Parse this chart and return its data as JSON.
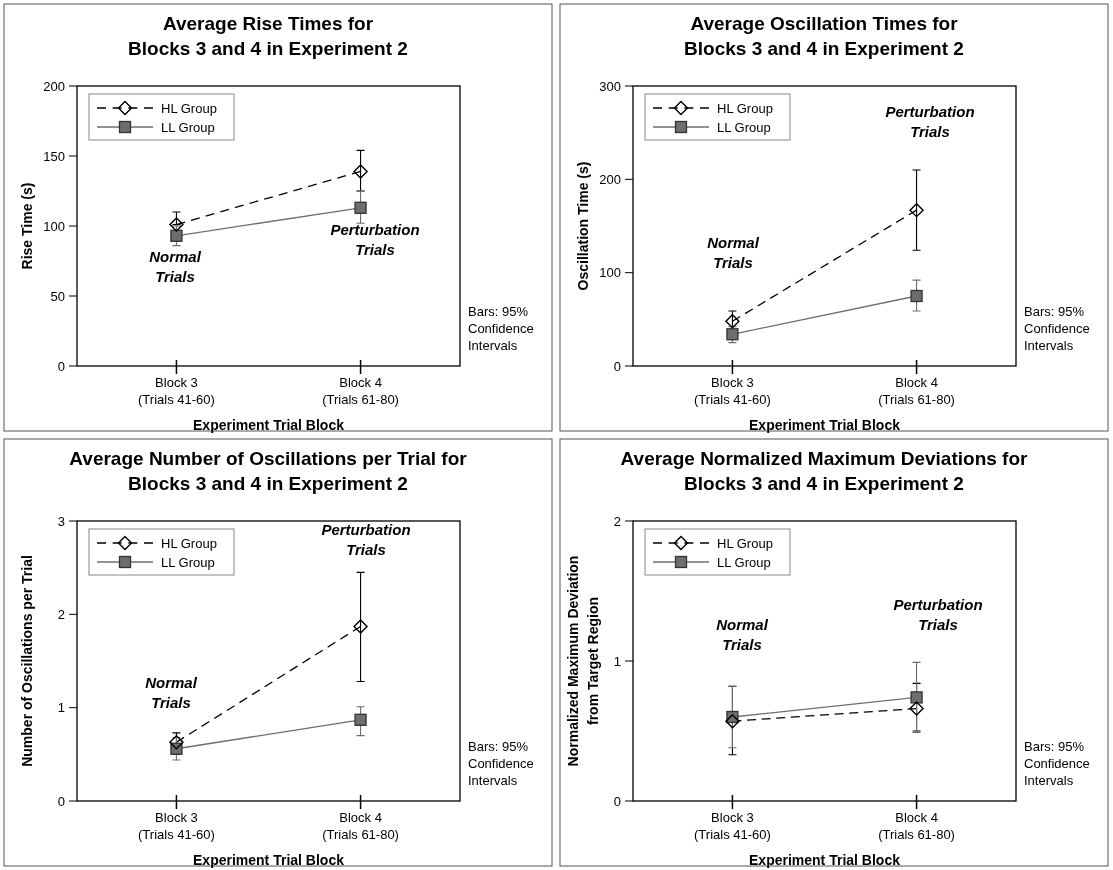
{
  "chart_data": [
    {
      "type": "line",
      "title": "Average Rise Times for\nBlocks 3 and 4 in Experiment 2",
      "xlabel": "Experiment Trial Block",
      "ylabel": "Rise Time (s)",
      "categories": [
        "Block 3\n(Trials 41-60)",
        "Block 4\n(Trials 61-80)"
      ],
      "ylim": [
        0,
        200
      ],
      "yticks": [
        0,
        50,
        100,
        150,
        200
      ],
      "grid": false,
      "legend": "top left",
      "series": [
        {
          "name": "HL Group",
          "color": "#000000",
          "marker": "diamond",
          "line_style": "dashed",
          "values": [
            101,
            139
          ],
          "errors": [
            [
              101,
              110
            ],
            [
              125,
              154
            ]
          ]
        },
        {
          "name": "LL Group",
          "color": "#6e6e6e",
          "marker": "square",
          "line_style": "solid",
          "values": [
            93,
            113
          ],
          "errors": [
            [
              86,
              100
            ],
            [
              102,
              125
            ]
          ]
        }
      ],
      "annotations": [
        "Normal\nTrials",
        "Perturbation\nTrials",
        "Bars: 95%\nConfidence\nIntervals"
      ]
    },
    {
      "type": "line",
      "title": "Average Oscillation Times for\nBlocks 3 and 4 in Experiment 2",
      "xlabel": "Experiment Trial Block",
      "ylabel": "Oscillation Time (s)",
      "categories": [
        "Block 3\n(Trials 41-60)",
        "Block 4\n(Trials 61-80)"
      ],
      "ylim": [
        0,
        300
      ],
      "yticks": [
        0,
        100,
        200,
        300
      ],
      "grid": false,
      "legend": "top left",
      "series": [
        {
          "name": "HL Group",
          "color": "#000000",
          "marker": "diamond",
          "line_style": "dashed",
          "values": [
            48,
            167
          ],
          "errors": [
            [
              37,
              59
            ],
            [
              124,
              210
            ]
          ]
        },
        {
          "name": "LL Group",
          "color": "#6e6e6e",
          "marker": "square",
          "line_style": "solid",
          "values": [
            34,
            75
          ],
          "errors": [
            [
              25,
              42
            ],
            [
              59,
              92
            ]
          ]
        }
      ],
      "annotations": [
        "Normal\nTrials",
        "Perturbation\nTrials",
        "Bars: 95%\nConfidence\nIntervals"
      ]
    },
    {
      "type": "line",
      "title": "Average Number of Oscillations per Trial for\nBlocks 3 and 4 in Experiment 2",
      "xlabel": "Experiment Trial Block",
      "ylabel": "Number of Oscillations per Trial",
      "categories": [
        "Block 3\n(Trials 41-60)",
        "Block 4\n(Trials 61-80)"
      ],
      "ylim": [
        0,
        3
      ],
      "yticks": [
        0,
        1,
        2,
        3
      ],
      "grid": false,
      "legend": "top left",
      "series": [
        {
          "name": "HL Group",
          "color": "#000000",
          "marker": "diamond",
          "line_style": "dashed",
          "values": [
            0.63,
            1.87
          ],
          "errors": [
            [
              0.5,
              0.73
            ],
            [
              1.28,
              2.45
            ]
          ]
        },
        {
          "name": "LL Group",
          "color": "#6e6e6e",
          "marker": "square",
          "line_style": "solid",
          "values": [
            0.56,
            0.87
          ],
          "errors": [
            [
              0.44,
              0.68
            ],
            [
              0.7,
              1.01
            ]
          ]
        }
      ],
      "annotations": [
        "Normal\nTrials",
        "Perturbation\nTrials",
        "Bars: 95%\nConfidence\nIntervals"
      ]
    },
    {
      "type": "line",
      "title": "Average Normalized Maximum Deviations for\nBlocks 3 and 4 in Experiment 2",
      "xlabel": "Experiment Trial Block",
      "ylabel": "Normalized Maximum Deviation\nfrom Target Region",
      "categories": [
        "Block 3\n(Trials 41-60)",
        "Block 4\n(Trials 61-80)"
      ],
      "ylim": [
        0,
        2
      ],
      "yticks": [
        0,
        1,
        2
      ],
      "grid": false,
      "legend": "top left",
      "series": [
        {
          "name": "HL Group",
          "color": "#000000",
          "marker": "diamond",
          "line_style": "dashed",
          "values": [
            0.57,
            0.66
          ],
          "errors": [
            [
              0.33,
              0.82
            ],
            [
              0.5,
              0.84
            ]
          ]
        },
        {
          "name": "LL Group",
          "color": "#6e6e6e",
          "marker": "square",
          "line_style": "solid",
          "values": [
            0.6,
            0.74
          ],
          "errors": [
            [
              0.38,
              0.82
            ],
            [
              0.49,
              0.99
            ]
          ]
        }
      ],
      "annotations": [
        "Normal\nTrials",
        "Perturbation\nTrials",
        "Bars: 95%\nConfidence\nIntervals"
      ]
    }
  ]
}
